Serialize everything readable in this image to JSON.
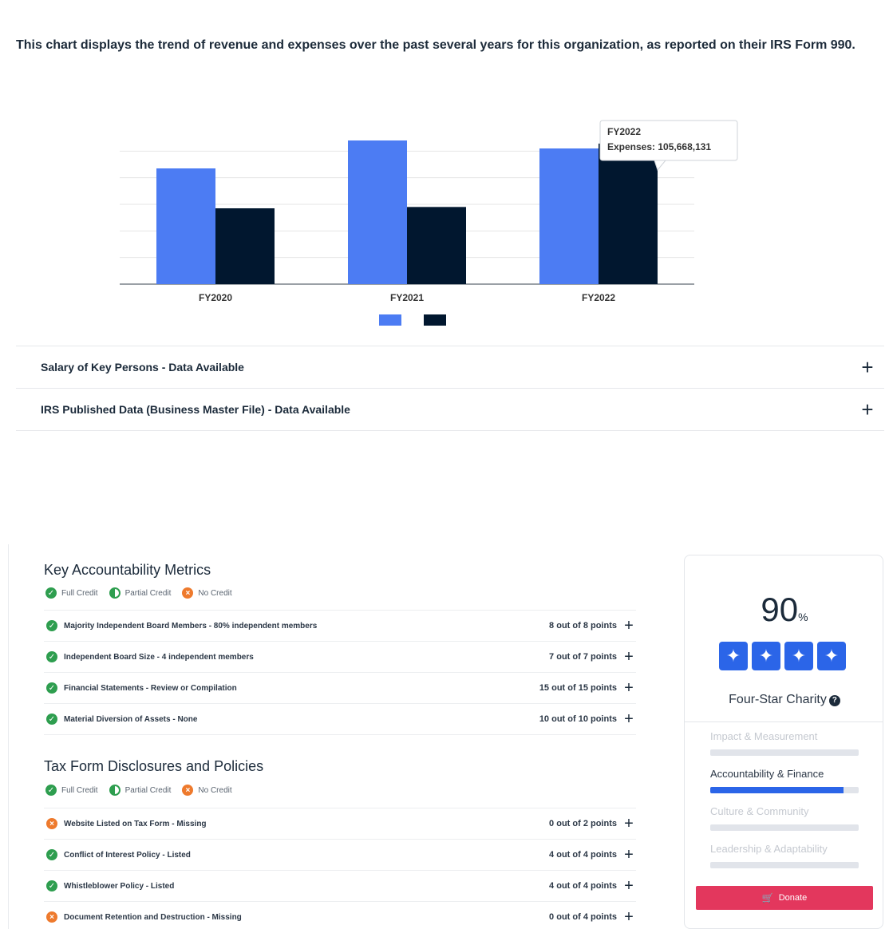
{
  "intro_text": "This chart displays the trend of revenue and expenses over the past several years for this organization, as reported on their IRS Form 990.",
  "chart_data": {
    "type": "bar",
    "categories": [
      "FY2020",
      "FY2021",
      "FY2022"
    ],
    "series": [
      {
        "values": [
          87000000,
          108000000,
          102000000
        ],
        "color": "#4c7cf3"
      },
      {
        "values": [
          57000000,
          58000000,
          105668131
        ],
        "color": "#01172f"
      }
    ],
    "ylim": [
      0,
      120000000
    ],
    "grid": true,
    "legend": "bottom",
    "tooltip": {
      "title": "FY2022",
      "label": "Expenses: 105,668,131"
    }
  },
  "accordion": [
    {
      "label": "Salary of Key Persons - Data Available"
    },
    {
      "label": "IRS Published Data (Business Master File) - Data Available"
    }
  ],
  "legend_labels": {
    "full": "Full Credit",
    "partial": "Partial Credit",
    "none": "No Credit"
  },
  "sections": [
    {
      "title": "Key Accountability Metrics",
      "rows": [
        {
          "label": "Majority Independent Board Members - 80% independent members",
          "points": "8 out of 8 points",
          "status": "full"
        },
        {
          "label": "Independent Board Size - 4 independent members",
          "points": "7 out of 7 points",
          "status": "full"
        },
        {
          "label": "Financial Statements - Review or Compilation",
          "points": "15 out of 15 points",
          "status": "full"
        },
        {
          "label": "Material Diversion of Assets - None",
          "points": "10 out of 10 points",
          "status": "full"
        }
      ]
    },
    {
      "title": "Tax Form Disclosures and Policies",
      "rows": [
        {
          "label": "Website Listed on Tax Form - Missing",
          "points": "0 out of 2 points",
          "status": "none"
        },
        {
          "label": "Conflict of Interest Policy - Listed",
          "points": "4 out of 4 points",
          "status": "full"
        },
        {
          "label": "Whistleblower Policy - Listed",
          "points": "4 out of 4 points",
          "status": "full"
        },
        {
          "label": "Document Retention and Destruction - Missing",
          "points": "0 out of 4 points",
          "status": "none"
        }
      ]
    }
  ],
  "rating": {
    "score": "90",
    "unit": "%",
    "stars": 4,
    "label": "Four-Star Charity",
    "beacons": [
      {
        "label": "Impact & Measurement",
        "active": false,
        "progress": 0
      },
      {
        "label": "Accountability & Finance",
        "active": true,
        "progress": 0.9
      },
      {
        "label": "Culture & Community",
        "active": false,
        "progress": 0
      },
      {
        "label": "Leadership & Adaptability",
        "active": false,
        "progress": 0
      }
    ],
    "donate_label": "Donate",
    "accent": "#2b65e8",
    "donate_color": "#e3375d"
  },
  "icons": {
    "plus": "plus-icon",
    "check": "check-icon",
    "cross": "cross-icon",
    "star": "star-icon",
    "help": "help-icon",
    "cart": "cart-icon"
  }
}
